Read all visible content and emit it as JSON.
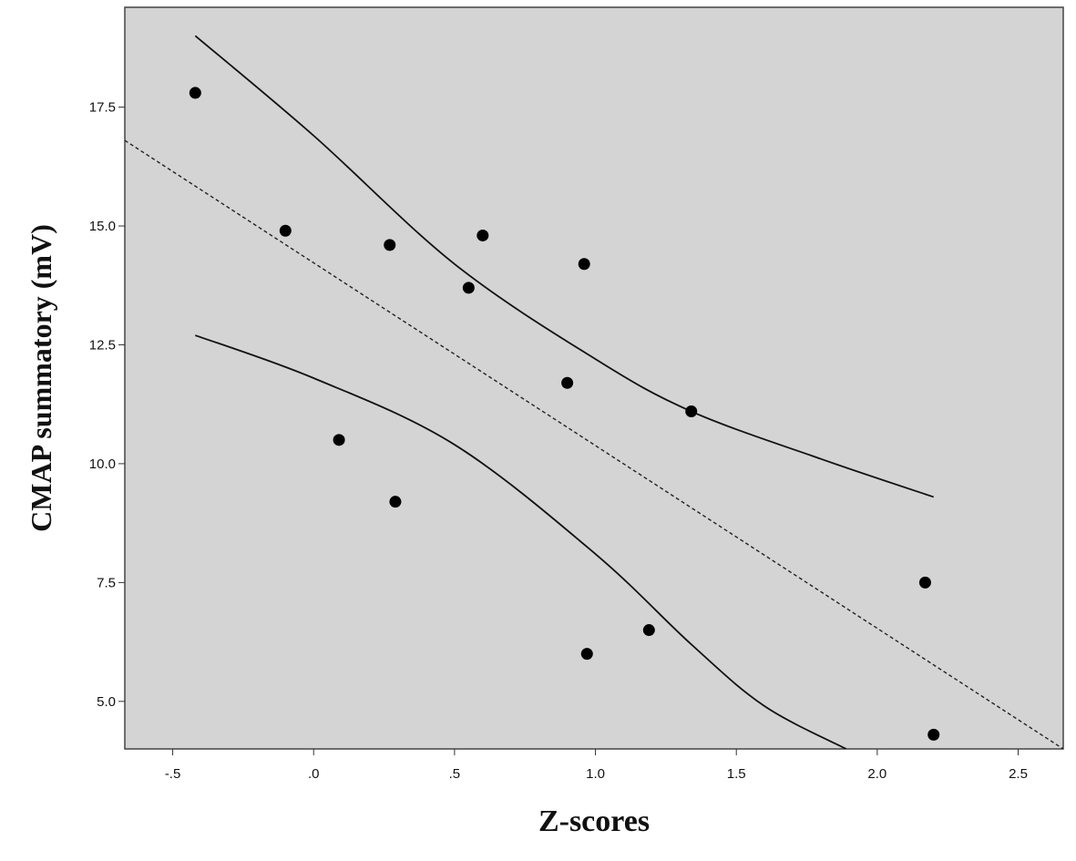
{
  "chart_data": {
    "type": "scatter",
    "title": "",
    "xlabel": "Z-scores",
    "ylabel": "CMAP summatory (mV)",
    "xlim": [
      -0.67,
      2.66
    ],
    "ylim": [
      4.0,
      19.6
    ],
    "x_ticks": [
      -0.5,
      0.0,
      0.5,
      1.0,
      1.5,
      2.0,
      2.5
    ],
    "x_tick_labels": [
      "-.5",
      ".0",
      ".5",
      "1.0",
      "1.5",
      "2.0",
      "2.5"
    ],
    "y_ticks": [
      5.0,
      7.5,
      10.0,
      12.5,
      15.0,
      17.5
    ],
    "y_tick_labels": [
      "5.0",
      "7.5",
      "10.0",
      "12.5",
      "15.0",
      "17.5"
    ],
    "grid": false,
    "plot_background": "#d4d4d4",
    "marker_color": "#000000",
    "points": [
      {
        "x": -0.42,
        "y": 17.8
      },
      {
        "x": -0.1,
        "y": 14.9
      },
      {
        "x": 0.09,
        "y": 10.5
      },
      {
        "x": 0.27,
        "y": 14.6
      },
      {
        "x": 0.29,
        "y": 9.2
      },
      {
        "x": 0.55,
        "y": 13.7
      },
      {
        "x": 0.6,
        "y": 14.8
      },
      {
        "x": 0.9,
        "y": 11.7
      },
      {
        "x": 0.96,
        "y": 14.2
      },
      {
        "x": 0.97,
        "y": 6.0
      },
      {
        "x": 1.19,
        "y": 6.5
      },
      {
        "x": 1.34,
        "y": 11.1
      },
      {
        "x": 2.17,
        "y": 7.5
      },
      {
        "x": 2.2,
        "y": 4.3
      }
    ],
    "fit_line": {
      "style": "dashed",
      "x": [
        -0.67,
        2.66
      ],
      "y": [
        16.8,
        4.0
      ]
    },
    "confidence_upper": {
      "style": "solid",
      "x": [
        -0.42,
        0.0,
        0.5,
        1.0,
        1.34,
        1.8,
        2.2
      ],
      "y": [
        19.0,
        16.9,
        14.2,
        12.2,
        11.1,
        10.1,
        9.3
      ]
    },
    "confidence_lower": {
      "style": "solid",
      "x": [
        -0.42,
        0.0,
        0.5,
        1.0,
        1.34,
        1.6,
        1.89
      ],
      "y": [
        12.7,
        11.8,
        10.4,
        8.1,
        6.2,
        4.9,
        4.0
      ]
    }
  }
}
